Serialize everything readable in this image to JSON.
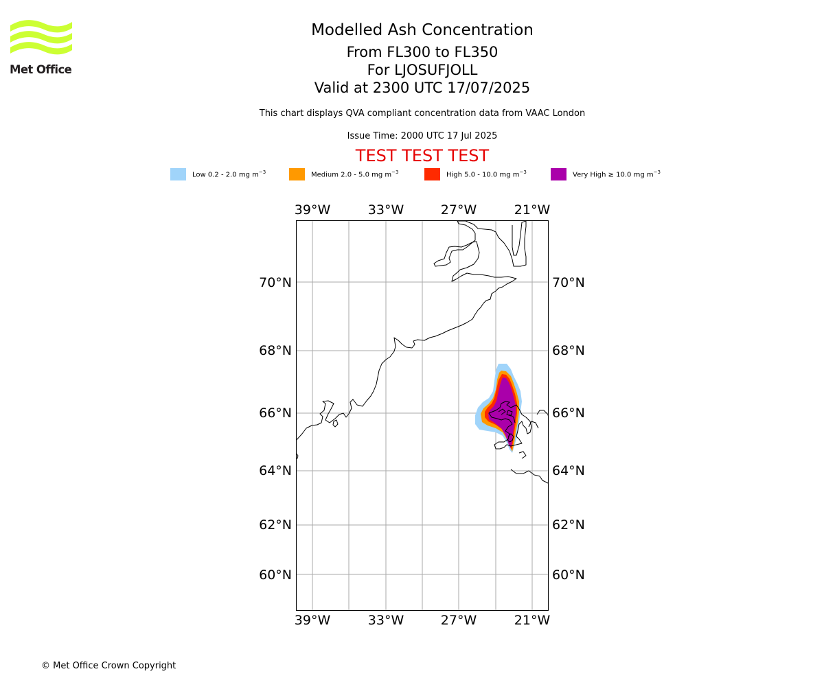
{
  "logo": {
    "text": "Met Office",
    "color": "#ccff33"
  },
  "header": {
    "title": "Modelled Ash Concentration",
    "flight_levels": "From FL300 to FL350",
    "volcano": "For LJOSUFJOLL",
    "valid_time": "Valid at 2300 UTC 17/07/2025",
    "description": "This chart displays QVA compliant concentration data from VAAC London",
    "issue_time": "Issue Time: 2000 UTC 17 Jul 2025",
    "banner": "TEST TEST TEST"
  },
  "legend": {
    "items": [
      {
        "label": "Low 0.2 - 2.0 mg m",
        "unit_exp": "−3",
        "color": "#a0d4fa"
      },
      {
        "label": "Medium 2.0 - 5.0 mg m",
        "unit_exp": "−3",
        "color": "#ff9900"
      },
      {
        "label": "High 5.0 - 10.0 mg m",
        "unit_exp": "−3",
        "color": "#ff2a00"
      },
      {
        "label": "Very High  ≥  10.0 mg m",
        "unit_exp": "−3",
        "color": "#aa00aa"
      }
    ]
  },
  "map": {
    "lon_labels": [
      "39°W",
      "33°W",
      "27°W",
      "21°W"
    ],
    "lat_labels": [
      "70°N",
      "68°N",
      "66°N",
      "64°N",
      "62°N",
      "60°N"
    ],
    "gridline_color": "#aaaaaa",
    "coast_color": "#000000"
  },
  "footer": {
    "copyright": "© Met Office Crown Copyright"
  }
}
